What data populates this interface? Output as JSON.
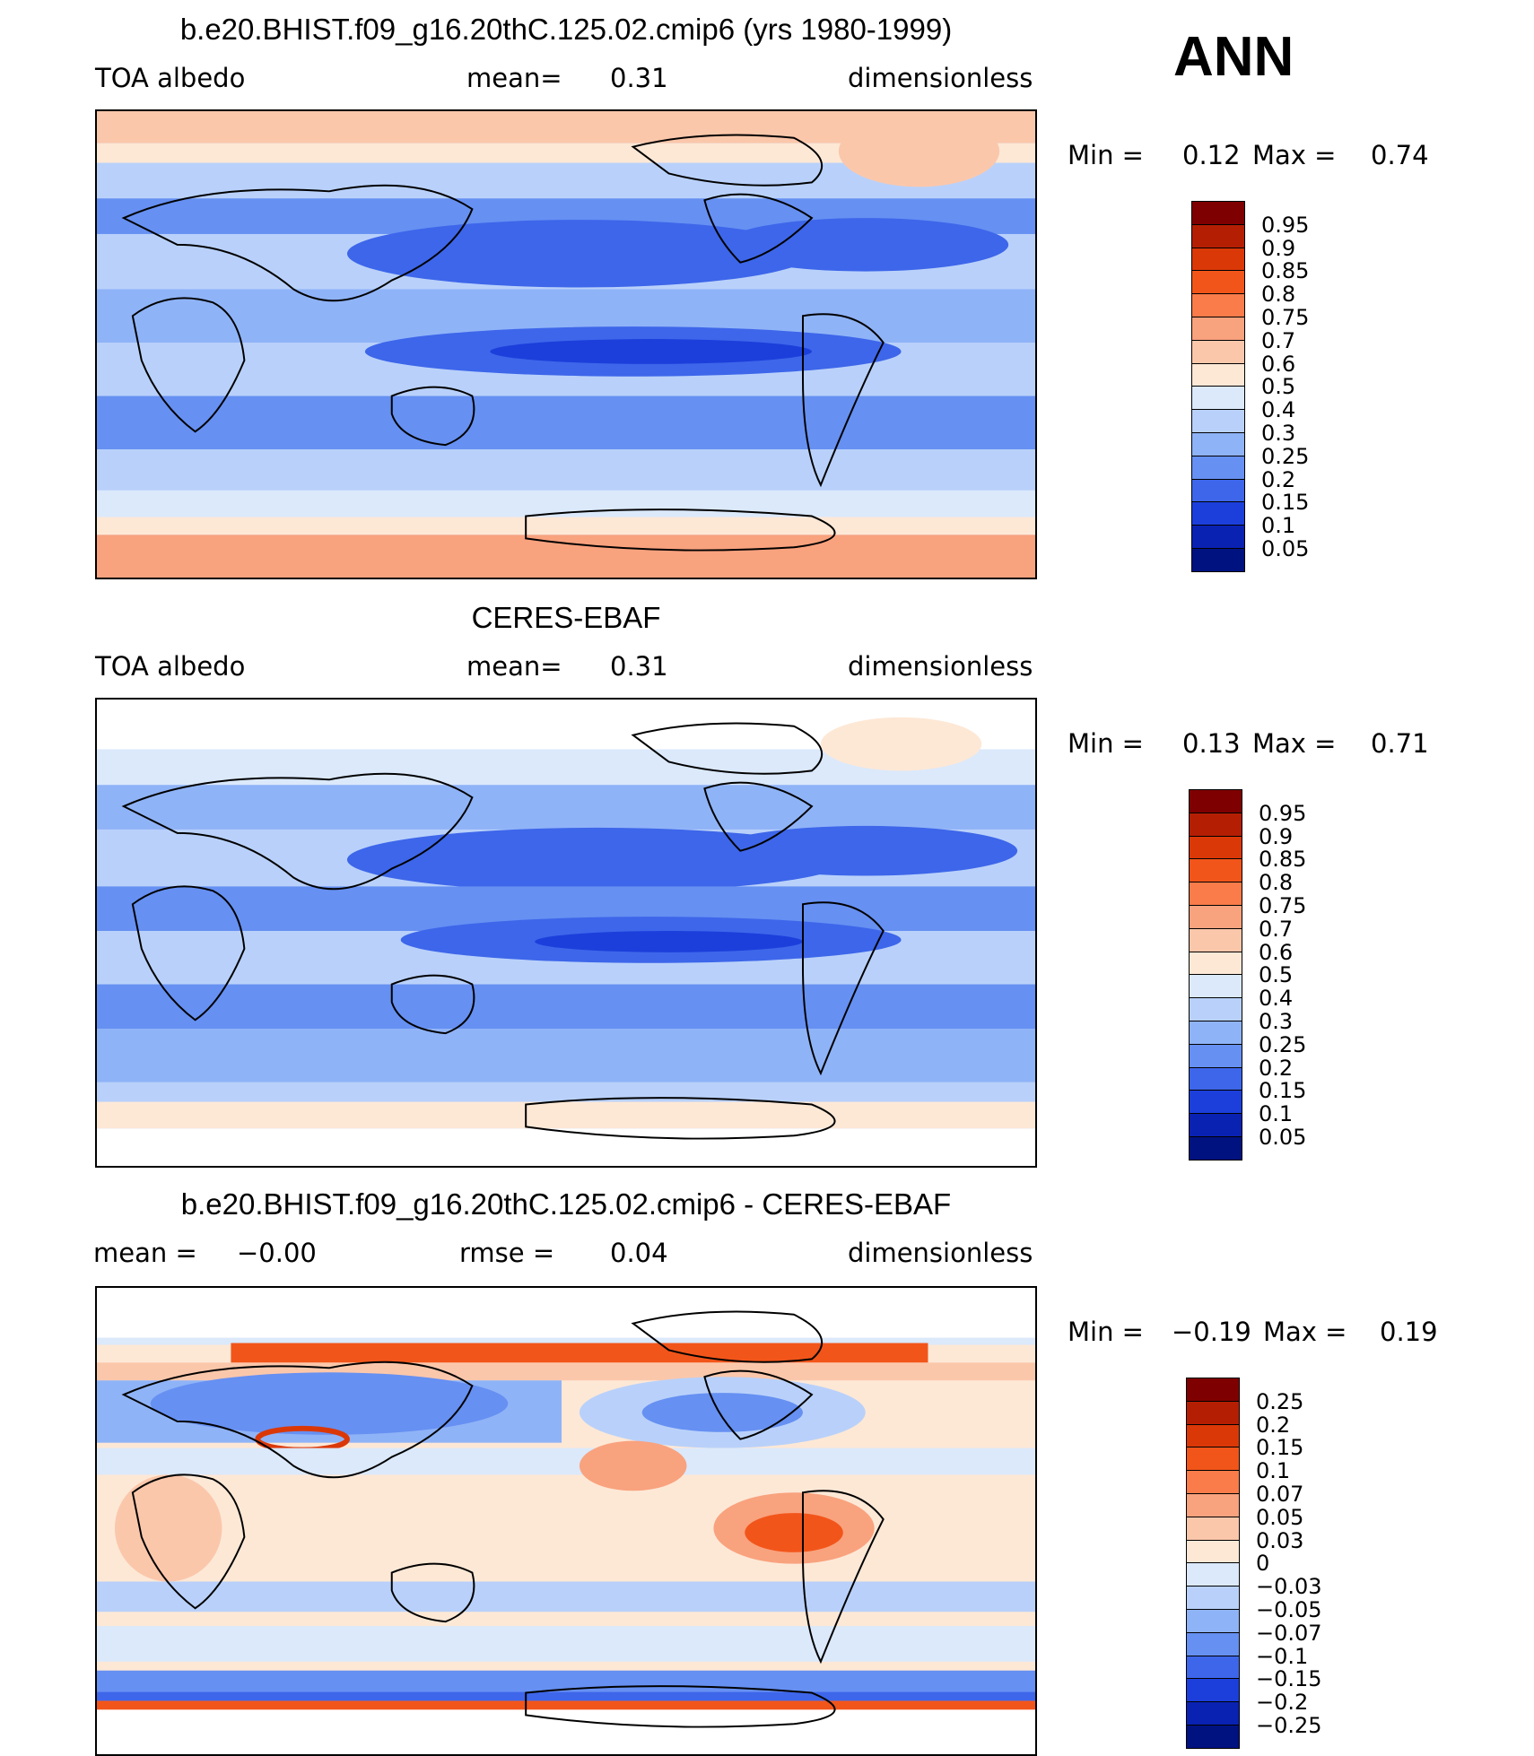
{
  "season": "ANN",
  "panels": [
    {
      "id": "model",
      "title": "b.e20.BHIST.f09_g16.20thC.125.02.cmip6 (yrs 1980-1999)",
      "left_label": "TOA  albedo",
      "mid_label": "mean=",
      "mid_value": "0.31",
      "right_label": "dimensionless",
      "min_label": "Min  =",
      "min_value": "0.12",
      "max_label": "Max  =",
      "max_value": "0.74",
      "colorbar": [
        "0.95",
        "0.9",
        "0.85",
        "0.8",
        "0.75",
        "0.7",
        "0.6",
        "0.5",
        "0.4",
        "0.3",
        "0.25",
        "0.2",
        "0.15",
        "0.1",
        "0.05"
      ],
      "colors": [
        "#7f0000",
        "#b41f04",
        "#db3808",
        "#f2551a",
        "#f97c4a",
        "#f9a27e",
        "#fbc7ab",
        "#fde8d6",
        "#dbe9fb",
        "#b9d1fa",
        "#8fb3f7",
        "#6690f2",
        "#3d66ea",
        "#1c3fdb",
        "#0a22b2",
        "#001280"
      ]
    },
    {
      "id": "obs",
      "title": "CERES-EBAF",
      "left_label": "TOA  albedo",
      "mid_label": "mean=",
      "mid_value": "0.31",
      "right_label": "dimensionless",
      "min_label": "Min  =",
      "min_value": "0.13",
      "max_label": "Max  =",
      "max_value": "0.71",
      "colorbar": [
        "0.95",
        "0.9",
        "0.85",
        "0.8",
        "0.75",
        "0.7",
        "0.6",
        "0.5",
        "0.4",
        "0.3",
        "0.25",
        "0.2",
        "0.15",
        "0.1",
        "0.05"
      ],
      "colors": [
        "#7f0000",
        "#b41f04",
        "#db3808",
        "#f2551a",
        "#f97c4a",
        "#f9a27e",
        "#fbc7ab",
        "#fde8d6",
        "#dbe9fb",
        "#b9d1fa",
        "#8fb3f7",
        "#6690f2",
        "#3d66ea",
        "#1c3fdb",
        "#0a22b2",
        "#001280"
      ]
    },
    {
      "id": "diff",
      "title": "b.e20.BHIST.f09_g16.20thC.125.02.cmip6 - CERES-EBAF",
      "left_label": "mean =",
      "left_value": "−0.00",
      "mid_label": "rmse =",
      "mid_value": "0.04",
      "right_label": "dimensionless",
      "min_label": "Min  =",
      "min_value": "−0.19",
      "max_label": "Max  =",
      "max_value": "0.19",
      "colorbar": [
        "0.25",
        "0.2",
        "0.15",
        "0.1",
        "0.07",
        "0.05",
        "0.03",
        "0",
        "−0.03",
        "−0.05",
        "−0.07",
        "−0.1",
        "−0.15",
        "−0.2",
        "−0.25"
      ],
      "colors": [
        "#7f0000",
        "#b41f04",
        "#db3808",
        "#f2551a",
        "#f97c4a",
        "#f9a27e",
        "#fbc7ab",
        "#fde8d6",
        "#dbe9fb",
        "#b9d1fa",
        "#8fb3f7",
        "#6690f2",
        "#3d66ea",
        "#1c3fdb",
        "#0a22b2",
        "#001280"
      ]
    }
  ],
  "chart_data": [
    {
      "type": "heatmap",
      "title": "b.e20.BHIST.f09_g16.20thC.125.02.cmip6 (yrs 1980-1999)",
      "variable": "TOA  albedo",
      "units": "dimensionless",
      "mean": 0.31,
      "min": 0.12,
      "max": 0.74,
      "contour_levels": [
        0.05,
        0.1,
        0.15,
        0.2,
        0.25,
        0.3,
        0.4,
        0.5,
        0.6,
        0.7,
        0.75,
        0.8,
        0.85,
        0.9,
        0.95
      ],
      "zonal_bands": [
        {
          "lat": [
            60,
            90
          ],
          "value": 0.65
        },
        {
          "lat": [
            40,
            60
          ],
          "value": 0.45
        },
        {
          "lat": [
            20,
            40
          ],
          "value": 0.25
        },
        {
          "lat": [
            0,
            20
          ],
          "value": 0.3
        },
        {
          "lat": [
            -20,
            0
          ],
          "value": 0.2
        },
        {
          "lat": [
            -40,
            -20
          ],
          "value": 0.3
        },
        {
          "lat": [
            -60,
            -40
          ],
          "value": 0.45
        },
        {
          "lat": [
            -90,
            -60
          ],
          "value": 0.65
        }
      ]
    },
    {
      "type": "heatmap",
      "title": "CERES-EBAF",
      "variable": "TOA  albedo",
      "units": "dimensionless",
      "mean": 0.31,
      "min": 0.13,
      "max": 0.71,
      "contour_levels": [
        0.05,
        0.1,
        0.15,
        0.2,
        0.25,
        0.3,
        0.4,
        0.5,
        0.6,
        0.7,
        0.75,
        0.8,
        0.85,
        0.9,
        0.95
      ],
      "zonal_bands": [
        {
          "lat": [
            60,
            90
          ],
          "value": 0.45
        },
        {
          "lat": [
            40,
            60
          ],
          "value": 0.4
        },
        {
          "lat": [
            20,
            40
          ],
          "value": 0.25
        },
        {
          "lat": [
            0,
            20
          ],
          "value": 0.3
        },
        {
          "lat": [
            -20,
            0
          ],
          "value": 0.2
        },
        {
          "lat": [
            -40,
            -20
          ],
          "value": 0.3
        },
        {
          "lat": [
            -60,
            -40
          ],
          "value": 0.45
        },
        {
          "lat": [
            -90,
            -60
          ],
          "value": 0.5
        }
      ]
    },
    {
      "type": "heatmap",
      "title": "b.e20.BHIST.f09_g16.20thC.125.02.cmip6 - CERES-EBAF",
      "units": "dimensionless",
      "mean": -0.0,
      "rmse": 0.04,
      "min": -0.19,
      "max": 0.19,
      "contour_levels": [
        -0.25,
        -0.2,
        -0.15,
        -0.1,
        -0.07,
        -0.05,
        -0.03,
        0,
        0.03,
        0.05,
        0.07,
        0.1,
        0.15,
        0.2,
        0.25
      ],
      "zonal_bands": [
        {
          "lat": [
            60,
            90
          ],
          "value": 0.07
        },
        {
          "lat": [
            40,
            60
          ],
          "value": -0.03
        },
        {
          "lat": [
            20,
            40
          ],
          "value": 0.0
        },
        {
          "lat": [
            0,
            20
          ],
          "value": 0.01
        },
        {
          "lat": [
            -20,
            0
          ],
          "value": 0.01
        },
        {
          "lat": [
            -40,
            -20
          ],
          "value": 0.01
        },
        {
          "lat": [
            -60,
            -40
          ],
          "value": -0.03
        },
        {
          "lat": [
            -90,
            -60
          ],
          "value": -0.05
        }
      ]
    }
  ]
}
